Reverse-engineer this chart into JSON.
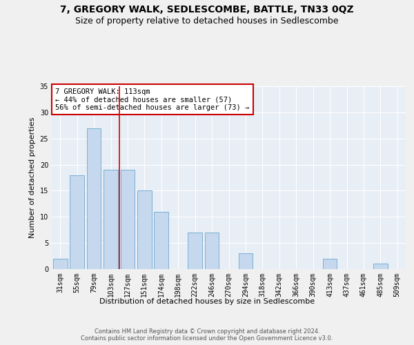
{
  "title": "7, GREGORY WALK, SEDLESCOMBE, BATTLE, TN33 0QZ",
  "subtitle": "Size of property relative to detached houses in Sedlescombe",
  "xlabel": "Distribution of detached houses by size in Sedlescombe",
  "ylabel": "Number of detached properties",
  "categories": [
    "31sqm",
    "55sqm",
    "79sqm",
    "103sqm",
    "127sqm",
    "151sqm",
    "174sqm",
    "198sqm",
    "222sqm",
    "246sqm",
    "270sqm",
    "294sqm",
    "318sqm",
    "342sqm",
    "366sqm",
    "390sqm",
    "413sqm",
    "437sqm",
    "461sqm",
    "485sqm",
    "509sqm"
  ],
  "values": [
    2,
    18,
    27,
    19,
    19,
    15,
    11,
    0,
    7,
    7,
    0,
    3,
    0,
    0,
    0,
    0,
    2,
    0,
    0,
    1,
    0
  ],
  "bar_color": "#c5d8ed",
  "bar_edge_color": "#7aafd4",
  "vline_x": 3.5,
  "vline_color": "#cc0000",
  "annotation_text": "7 GREGORY WALK: 113sqm\n← 44% of detached houses are smaller (57)\n56% of semi-detached houses are larger (73) →",
  "annotation_box_color": "#ffffff",
  "annotation_box_edge": "#cc0000",
  "ylim": [
    0,
    35
  ],
  "yticks": [
    0,
    5,
    10,
    15,
    20,
    25,
    30,
    35
  ],
  "footnote": "Contains HM Land Registry data © Crown copyright and database right 2024.\nContains public sector information licensed under the Open Government Licence v3.0.",
  "fig_bg_color": "#f0f0f0",
  "plot_bg_color": "#e8eef5",
  "title_fontsize": 10,
  "subtitle_fontsize": 9,
  "label_fontsize": 8,
  "tick_fontsize": 7,
  "annotation_fontsize": 7.5,
  "footnote_fontsize": 6
}
